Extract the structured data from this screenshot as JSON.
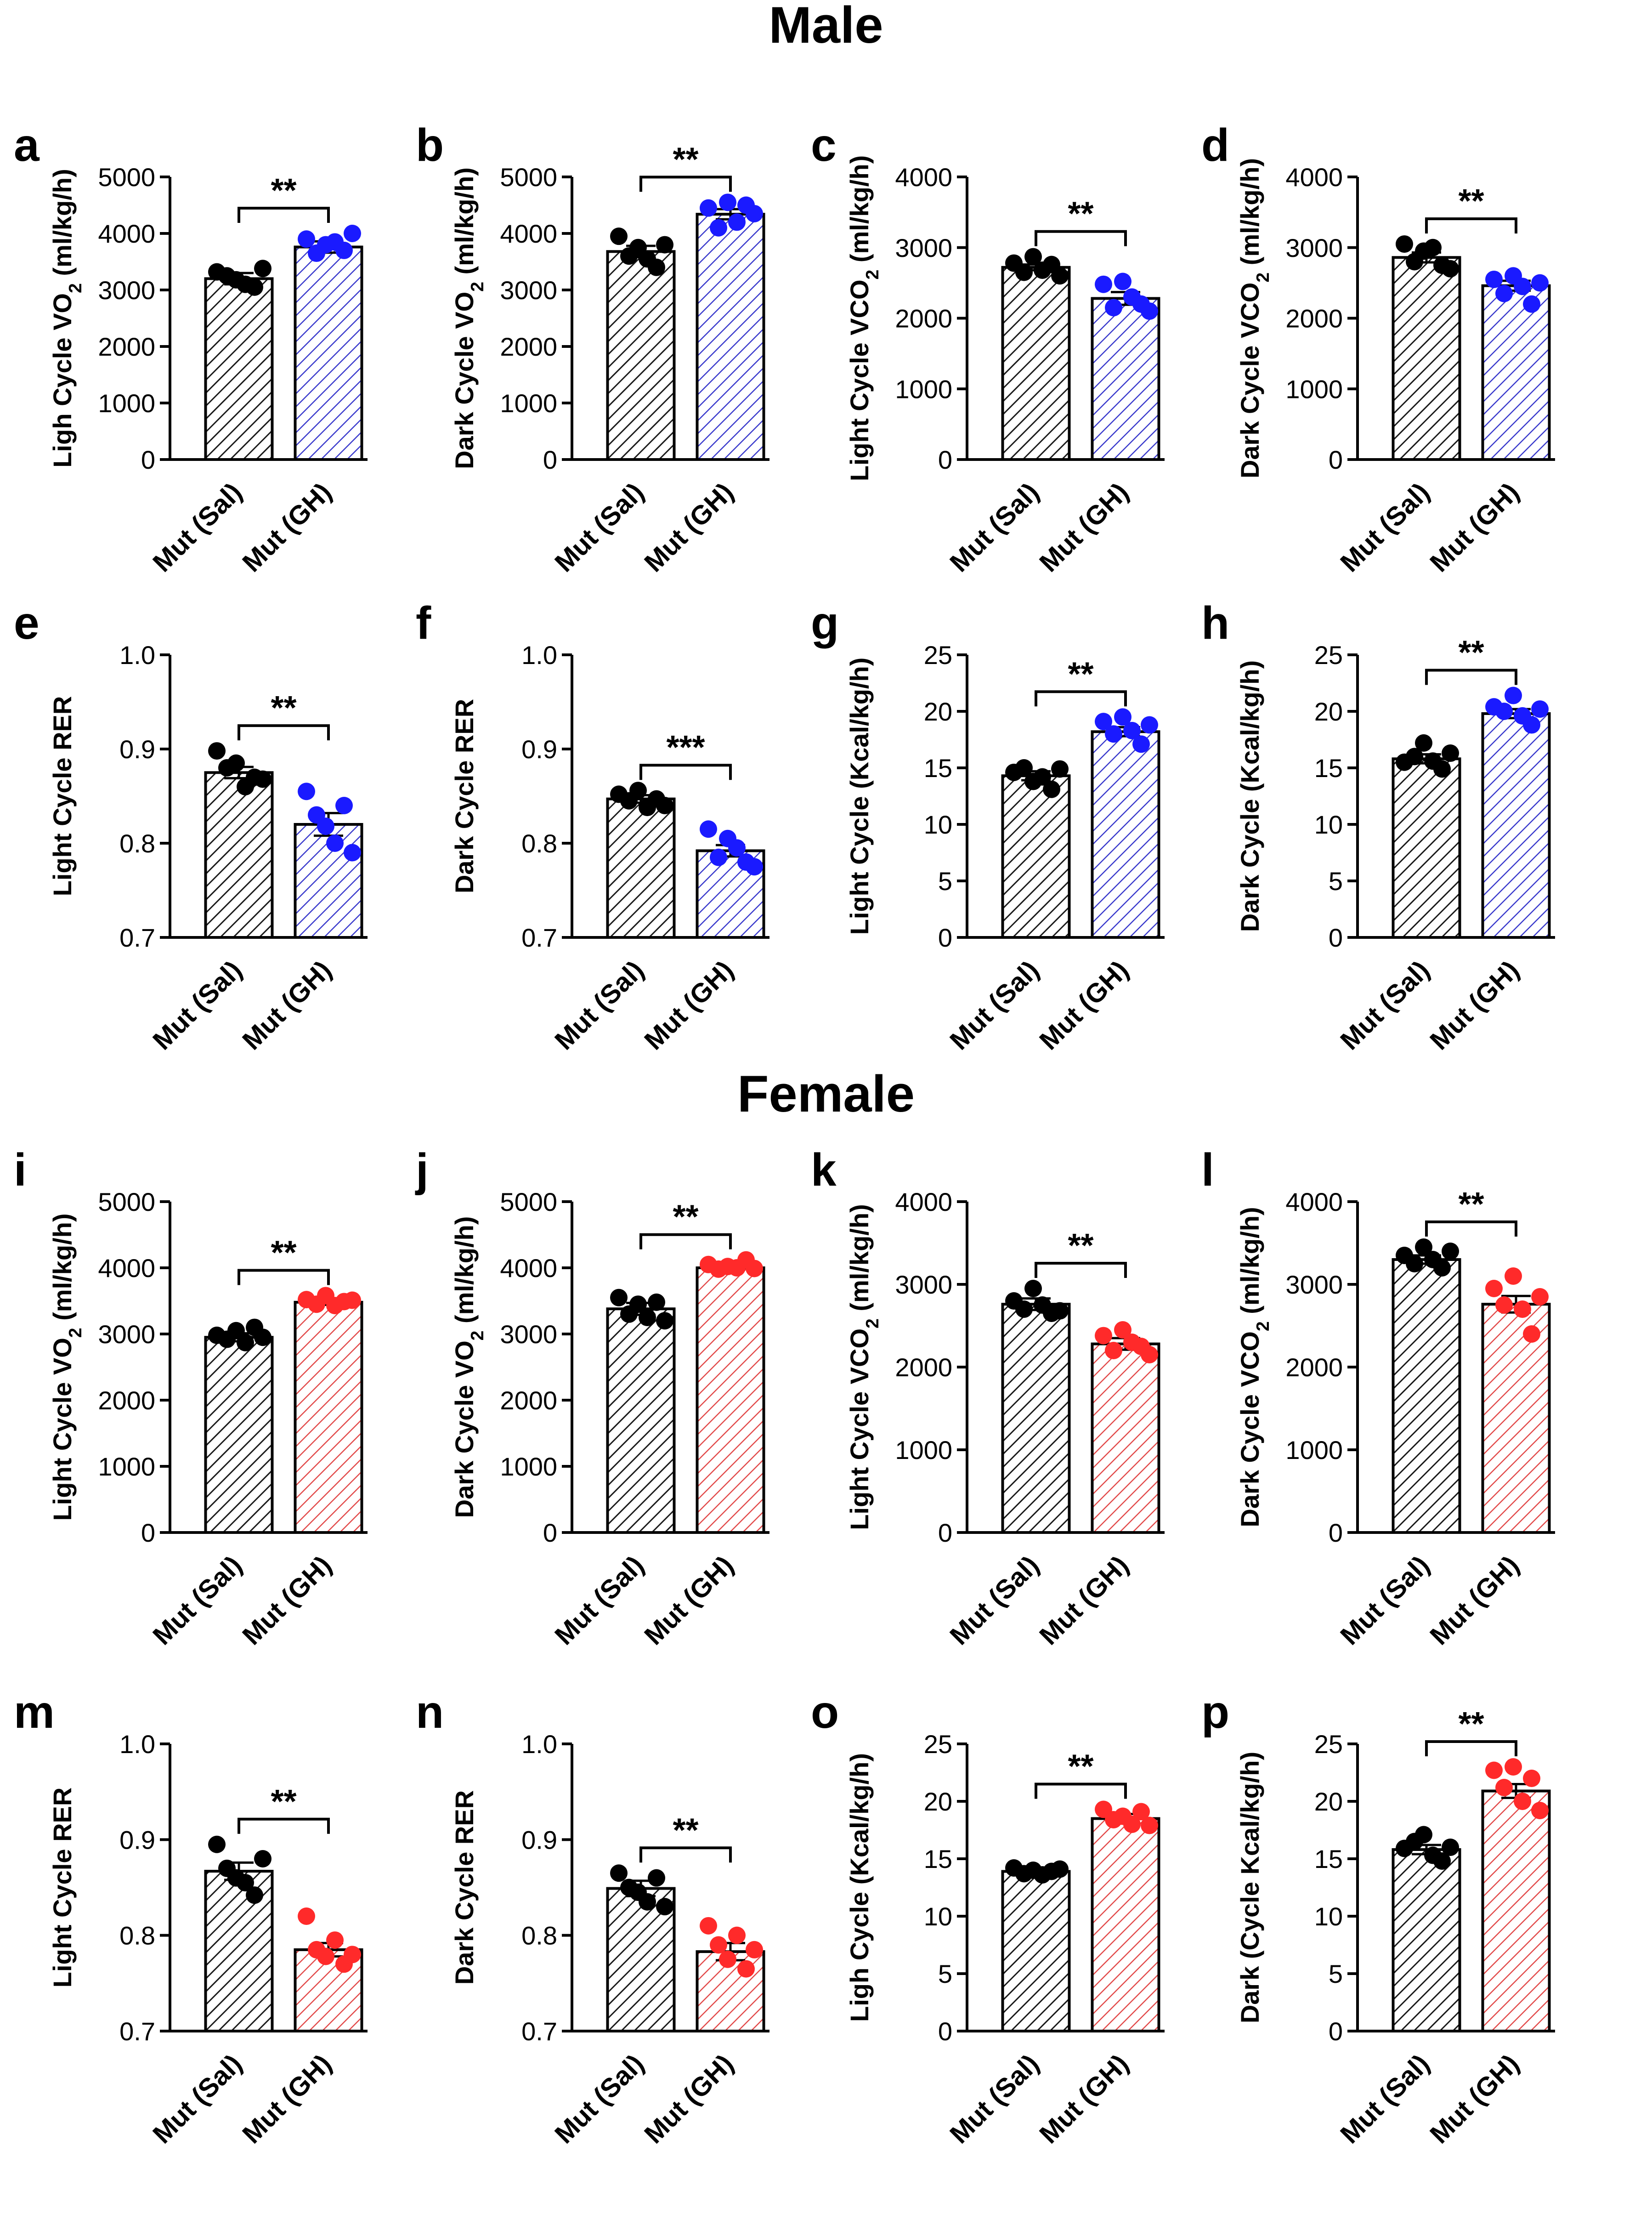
{
  "sections": {
    "male": "Male",
    "female": "Female"
  },
  "colors": {
    "control": "#000000",
    "male_gh": "#1a1aff",
    "male_gh_hatch": "#3a3acc",
    "female_gh": "#ff2a2a",
    "female_gh_hatch": "#e24a4a"
  },
  "chart_data": [
    {
      "panel": "a",
      "type": "bar",
      "ylabel": "Ligh Cycle VO2 (ml/kg/h)",
      "ylim": [
        0,
        5000
      ],
      "ticks": [
        0,
        1000,
        2000,
        3000,
        4000,
        5000
      ],
      "tick_labels": [
        "0",
        "1000",
        "2000",
        "3000",
        "4000",
        "5000"
      ],
      "categories": [
        "Mut (Sal)",
        "Mut (GH)"
      ],
      "values": [
        3200,
        3760
      ],
      "sem": [
        100,
        100
      ],
      "points": [
        [
          3320,
          3250,
          3180,
          3100,
          3050,
          3380
        ],
        [
          3900,
          3650,
          3800,
          3850,
          3700,
          4000
        ]
      ],
      "significance": "**",
      "group": "male"
    },
    {
      "panel": "b",
      "type": "bar",
      "ylabel": "Dark Cycle VO2 (ml/kg/h)",
      "ylim": [
        0,
        5000
      ],
      "ticks": [
        0,
        1000,
        2000,
        3000,
        4000,
        5000
      ],
      "tick_labels": [
        "0",
        "1000",
        "2000",
        "3000",
        "4000",
        "5000"
      ],
      "categories": [
        "Mut (Sal)",
        "Mut (GH)"
      ],
      "values": [
        3680,
        4340
      ],
      "sem": [
        100,
        90
      ],
      "points": [
        [
          3950,
          3600,
          3750,
          3550,
          3400,
          3800
        ],
        [
          4450,
          4100,
          4550,
          4200,
          4500,
          4350
        ]
      ],
      "significance": "**",
      "group": "male"
    },
    {
      "panel": "c",
      "type": "bar",
      "ylabel": "Light Cycle VCO2 (ml/kg/h)",
      "ylim": [
        0,
        4000
      ],
      "ticks": [
        0,
        1000,
        2000,
        3000,
        4000
      ],
      "tick_labels": [
        "0",
        "1000",
        "2000",
        "3000",
        "4000"
      ],
      "categories": [
        "Mut (Sal)",
        "Mut (GH)"
      ],
      "values": [
        2720,
        2280
      ],
      "sem": [
        40,
        90
      ],
      "points": [
        [
          2780,
          2650,
          2870,
          2680,
          2760,
          2600
        ],
        [
          2480,
          2150,
          2520,
          2300,
          2200,
          2100
        ]
      ],
      "significance": "**",
      "group": "male"
    },
    {
      "panel": "d",
      "type": "bar",
      "ylabel": "Dark Cycle VCO2 (ml/kg/h)",
      "ylim": [
        0,
        4000
      ],
      "ticks": [
        0,
        1000,
        2000,
        3000,
        4000
      ],
      "tick_labels": [
        "0",
        "1000",
        "2000",
        "3000",
        "4000"
      ],
      "categories": [
        "Mut (Sal)",
        "Mut (GH)"
      ],
      "values": [
        2860,
        2460
      ],
      "sem": [
        70,
        70
      ],
      "points": [
        [
          3050,
          2800,
          2950,
          3000,
          2750,
          2700
        ],
        [
          2550,
          2350,
          2600,
          2450,
          2200,
          2500
        ]
      ],
      "significance": "**",
      "group": "male"
    },
    {
      "panel": "e",
      "type": "bar",
      "ylabel": "Light  Cycle RER",
      "ylim": [
        0.7,
        1.0
      ],
      "ticks": [
        0.7,
        0.8,
        0.9,
        1.0
      ],
      "tick_labels": [
        "0.7",
        "0.8",
        "0.9",
        "1.0"
      ],
      "categories": [
        "Mut (Sal)",
        "Mut (GH)"
      ],
      "values": [
        0.875,
        0.82
      ],
      "sem": [
        0.006,
        0.012
      ],
      "points": [
        [
          0.898,
          0.88,
          0.885,
          0.86,
          0.87,
          0.868
        ],
        [
          0.855,
          0.83,
          0.818,
          0.8,
          0.84,
          0.79
        ]
      ],
      "significance": "**",
      "group": "male"
    },
    {
      "panel": "f",
      "type": "bar",
      "ylabel": "Dark Cycle RER",
      "ylim": [
        0.7,
        1.0
      ],
      "ticks": [
        0.7,
        0.8,
        0.9,
        1.0
      ],
      "tick_labels": [
        "0.7",
        "0.8",
        "0.9",
        "1.0"
      ],
      "categories": [
        "Mut (Sal)",
        "Mut (GH)"
      ],
      "values": [
        0.847,
        0.792
      ],
      "sem": [
        0.004,
        0.006
      ],
      "points": [
        [
          0.852,
          0.845,
          0.856,
          0.838,
          0.847,
          0.84
        ],
        [
          0.815,
          0.785,
          0.805,
          0.795,
          0.78,
          0.775
        ]
      ],
      "significance": "***",
      "group": "male"
    },
    {
      "panel": "g",
      "type": "bar",
      "ylabel": "Light Cycle (Kcal/kg/h)",
      "ylim": [
        0,
        25
      ],
      "ticks": [
        0,
        5,
        10,
        15,
        20,
        25
      ],
      "tick_labels": [
        "0",
        "5",
        "10",
        "15",
        "20",
        "25"
      ],
      "categories": [
        "Mut (Sal)",
        "Mut (GH)"
      ],
      "values": [
        14.3,
        18.2
      ],
      "sem": [
        0.4,
        0.4
      ],
      "points": [
        [
          14.6,
          15.0,
          13.8,
          14.2,
          13.1,
          14.9
        ],
        [
          19.1,
          18.0,
          19.5,
          18.3,
          17.1,
          18.8
        ]
      ],
      "significance": "**",
      "group": "male"
    },
    {
      "panel": "h",
      "type": "bar",
      "ylabel": "Dark Cycle (Kcal/kg/h)",
      "ylim": [
        0,
        25
      ],
      "ticks": [
        0,
        5,
        10,
        15,
        20,
        25
      ],
      "tick_labels": [
        "0",
        "5",
        "10",
        "15",
        "20",
        "25"
      ],
      "categories": [
        "Mut (Sal)",
        "Mut (GH)"
      ],
      "values": [
        15.8,
        19.8
      ],
      "sem": [
        0.4,
        0.4
      ],
      "points": [
        [
          15.5,
          16.0,
          17.2,
          15.6,
          14.9,
          16.3
        ],
        [
          20.4,
          20.0,
          21.4,
          19.6,
          18.8,
          20.2
        ]
      ],
      "significance": "**",
      "group": "male"
    },
    {
      "panel": "i",
      "type": "bar",
      "ylabel": "Light Cycle VO2 (ml/kg/h)",
      "ylim": [
        0,
        5000
      ],
      "ticks": [
        0,
        1000,
        2000,
        3000,
        4000,
        5000
      ],
      "tick_labels": [
        "0",
        "1000",
        "2000",
        "3000",
        "4000",
        "5000"
      ],
      "categories": [
        "Mut (Sal)",
        "Mut (GH)"
      ],
      "values": [
        2950,
        3480
      ],
      "sem": [
        60,
        40
      ],
      "points": [
        [
          2980,
          2920,
          3050,
          2870,
          3100,
          2950
        ],
        [
          3520,
          3450,
          3580,
          3430,
          3490,
          3510
        ]
      ],
      "significance": "**",
      "group": "female"
    },
    {
      "panel": "j",
      "type": "bar",
      "ylabel": "Dark Cycle VO2 (ml/kg/h)",
      "ylim": [
        0,
        5000
      ],
      "ticks": [
        0,
        1000,
        2000,
        3000,
        4000,
        5000
      ],
      "tick_labels": [
        "0",
        "1000",
        "2000",
        "3000",
        "4000",
        "5000"
      ],
      "categories": [
        "Mut (Sal)",
        "Mut (GH)"
      ],
      "values": [
        3380,
        4000
      ],
      "sem": [
        90,
        30
      ],
      "points": [
        [
          3550,
          3300,
          3450,
          3250,
          3480,
          3200
        ],
        [
          4050,
          3980,
          4020,
          4000,
          4120,
          3990
        ]
      ],
      "significance": "**",
      "group": "female"
    },
    {
      "panel": "k",
      "type": "bar",
      "ylabel": "Light Cycle VCO2 (ml/kg/h)",
      "ylim": [
        0,
        4000
      ],
      "ticks": [
        0,
        1000,
        2000,
        3000,
        4000
      ],
      "tick_labels": [
        "0",
        "1000",
        "2000",
        "3000",
        "4000"
      ],
      "categories": [
        "Mut (Sal)",
        "Mut (GH)"
      ],
      "values": [
        2760,
        2280
      ],
      "sem": [
        70,
        70
      ],
      "points": [
        [
          2800,
          2700,
          2950,
          2750,
          2650,
          2680
        ],
        [
          2380,
          2200,
          2450,
          2300,
          2250,
          2150
        ]
      ],
      "significance": "**",
      "group": "female"
    },
    {
      "panel": "l",
      "type": "bar",
      "ylabel": "Dark Cycle VCO2 (ml/kg/h)",
      "ylim": [
        0,
        4000
      ],
      "ticks": [
        0,
        1000,
        2000,
        3000,
        4000
      ],
      "tick_labels": [
        "0",
        "1000",
        "2000",
        "3000",
        "4000"
      ],
      "categories": [
        "Mut (Sal)",
        "Mut (GH)"
      ],
      "values": [
        3300,
        2760
      ],
      "sem": [
        50,
        100
      ],
      "points": [
        [
          3350,
          3250,
          3450,
          3300,
          3200,
          3400
        ],
        [
          2950,
          2750,
          3100,
          2700,
          2400,
          2850
        ]
      ],
      "significance": "**",
      "group": "female"
    },
    {
      "panel": "m",
      "type": "bar",
      "ylabel": "Light Cycle RER",
      "ylim": [
        0.7,
        1.0
      ],
      "ticks": [
        0.7,
        0.8,
        0.9,
        1.0
      ],
      "tick_labels": [
        "0.7",
        "0.8",
        "0.9",
        "1.0"
      ],
      "categories": [
        "Mut (Sal)",
        "Mut (GH)"
      ],
      "values": [
        0.867,
        0.785
      ],
      "sem": [
        0.009,
        0.007
      ],
      "points": [
        [
          0.895,
          0.87,
          0.86,
          0.855,
          0.842,
          0.88
        ],
        [
          0.82,
          0.785,
          0.778,
          0.795,
          0.77,
          0.78
        ]
      ],
      "significance": "**",
      "group": "female"
    },
    {
      "panel": "n",
      "type": "bar",
      "ylabel": "Dark Cycle RER",
      "ylim": [
        0.7,
        1.0
      ],
      "ticks": [
        0.7,
        0.8,
        0.9,
        1.0
      ],
      "tick_labels": [
        "0.7",
        "0.8",
        "0.9",
        "1.0"
      ],
      "categories": [
        "Mut (Sal)",
        "Mut (GH)"
      ],
      "values": [
        0.849,
        0.783
      ],
      "sem": [
        0.008,
        0.009
      ],
      "points": [
        [
          0.865,
          0.85,
          0.845,
          0.835,
          0.86,
          0.83
        ],
        [
          0.81,
          0.79,
          0.775,
          0.8,
          0.765,
          0.785
        ]
      ],
      "significance": "**",
      "group": "female"
    },
    {
      "panel": "o",
      "type": "bar",
      "ylabel": "Ligh Cycle (Kcal/kg/h)",
      "ylim": [
        0,
        25
      ],
      "ticks": [
        0,
        5,
        10,
        15,
        20,
        25
      ],
      "tick_labels": [
        "0",
        "5",
        "10",
        "15",
        "20",
        "25"
      ],
      "categories": [
        "Mut (Sal)",
        "Mut (GH)"
      ],
      "values": [
        13.9,
        18.5
      ],
      "sem": [
        0.2,
        0.4
      ],
      "points": [
        [
          14.2,
          13.7,
          14.0,
          13.6,
          13.9,
          14.1
        ],
        [
          19.3,
          18.4,
          18.7,
          18.0,
          19.1,
          17.9
        ]
      ],
      "significance": "**",
      "group": "female"
    },
    {
      "panel": "p",
      "type": "bar",
      "ylabel": "Dark (Cycle Kcal/kg/h)",
      "ylim": [
        0,
        25
      ],
      "ticks": [
        0,
        5,
        10,
        15,
        20,
        25
      ],
      "tick_labels": [
        "0",
        "5",
        "10",
        "15",
        "20",
        "25"
      ],
      "categories": [
        "Mut (Sal)",
        "Mut (GH)"
      ],
      "values": [
        15.8,
        20.9
      ],
      "sem": [
        0.4,
        0.6
      ],
      "points": [
        [
          15.9,
          16.5,
          17.1,
          15.3,
          14.8,
          16.0
        ],
        [
          22.7,
          21.2,
          23.0,
          20.0,
          22.0,
          19.2
        ]
      ],
      "significance": "**",
      "group": "female"
    }
  ]
}
